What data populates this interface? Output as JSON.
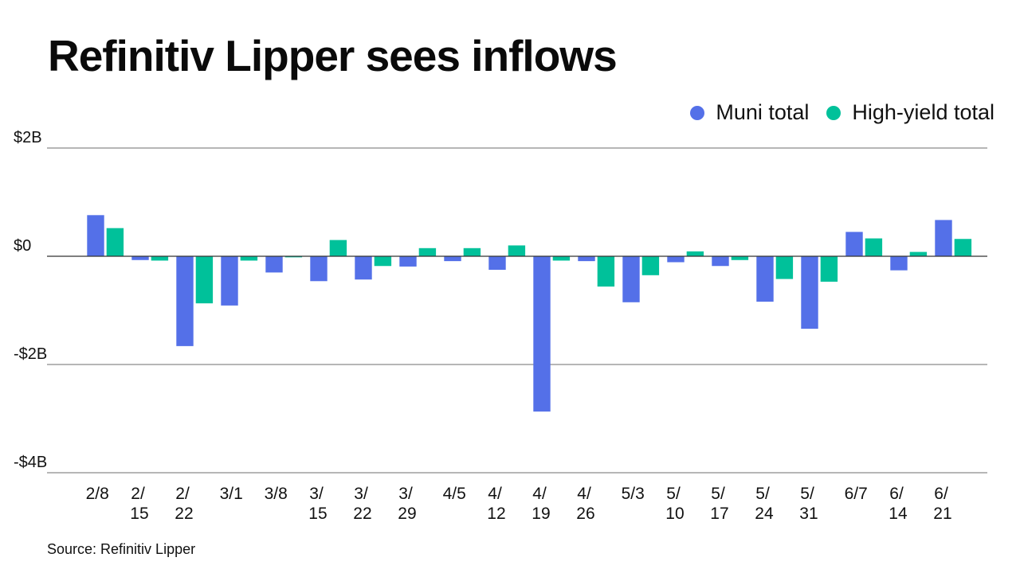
{
  "title": "Refinitiv Lipper sees inflows",
  "source": "Source: Refinitiv Lipper",
  "colors": {
    "muni": "#5470e8",
    "high_yield": "#00c19a",
    "grid": "#8a8a8a",
    "zero": "#333333"
  },
  "legend": [
    {
      "label": "Muni total",
      "color": "#5470e8"
    },
    {
      "label": "High-yield total",
      "color": "#00c19a"
    }
  ],
  "chart_data": {
    "type": "bar",
    "title": "Refinitiv Lipper sees inflows",
    "xlabel": "",
    "ylabel": "",
    "unit": "$B",
    "ylim": [
      -4,
      2
    ],
    "yticks": [
      2,
      0,
      -2,
      -4
    ],
    "ytick_labels": [
      "$2B",
      "$0",
      "-$2B",
      "-$4B"
    ],
    "grid": true,
    "legend_position": "top-right",
    "categories": [
      "2/8",
      "2/15",
      "2/22",
      "3/1",
      "3/8",
      "3/15",
      "3/22",
      "3/29",
      "4/5",
      "4/12",
      "4/19",
      "4/26",
      "5/3",
      "5/10",
      "5/17",
      "5/24",
      "5/31",
      "6/7",
      "6/14",
      "6/21"
    ],
    "category_label_lines": [
      [
        "2/8"
      ],
      [
        "2/",
        "15"
      ],
      [
        "2/",
        "22"
      ],
      [
        "3/1"
      ],
      [
        "3/8"
      ],
      [
        "3/",
        "15"
      ],
      [
        "3/",
        "22"
      ],
      [
        "3/",
        "29"
      ],
      [
        "4/5"
      ],
      [
        "4/",
        "12"
      ],
      [
        "4/",
        "19"
      ],
      [
        "4/",
        "26"
      ],
      [
        "5/3"
      ],
      [
        "5/",
        "10"
      ],
      [
        "5/",
        "17"
      ],
      [
        "5/",
        "24"
      ],
      [
        "5/",
        "31"
      ],
      [
        "6/7"
      ],
      [
        "6/",
        "14"
      ],
      [
        "6/",
        "21"
      ]
    ],
    "series": [
      {
        "name": "Muni total",
        "color": "#5470e8",
        "values": [
          0.76,
          -0.07,
          -1.66,
          -0.91,
          -0.3,
          -0.46,
          -0.43,
          -0.19,
          -0.09,
          -0.25,
          -2.87,
          -0.09,
          -0.85,
          -0.11,
          -0.18,
          -0.84,
          -1.34,
          0.45,
          -0.26,
          0.67
        ]
      },
      {
        "name": "High-yield total",
        "color": "#00c19a",
        "values": [
          0.52,
          -0.08,
          -0.87,
          -0.08,
          -0.02,
          0.3,
          -0.18,
          0.15,
          0.15,
          0.2,
          -0.08,
          -0.56,
          -0.35,
          0.09,
          -0.07,
          -0.42,
          -0.47,
          0.33,
          0.08,
          0.32
        ]
      }
    ]
  }
}
